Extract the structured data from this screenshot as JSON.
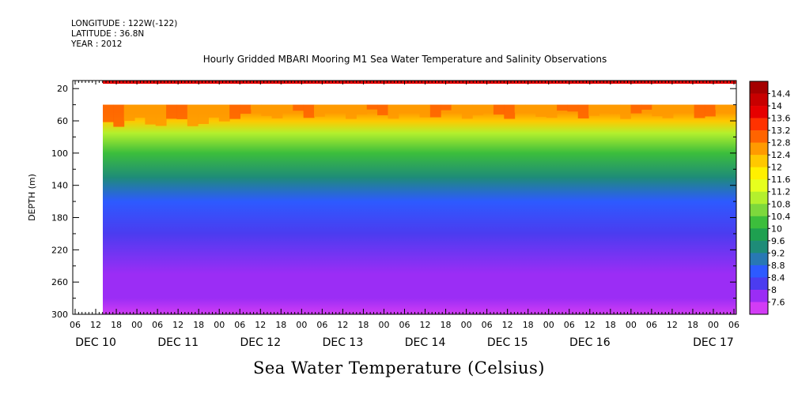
{
  "header": {
    "longitude": "LONGITUDE : 122W(-122)",
    "latitude": "LATITUDE : 36.8N",
    "year": "YEAR : 2012",
    "title": "Hourly Gridded MBARI Mooring M1 Sea Water Temperature and Salinity Observations"
  },
  "footer_title": "Sea Water Temperature (Celsius)",
  "chart_data": {
    "type": "heatmap",
    "title": "Hourly Gridded MBARI Mooring M1 Sea Water Temperature and Salinity Observations",
    "colorbar_title": "Sea Water Temperature (Celsius)",
    "ylabel": "DEPTH (m)",
    "ylim": [
      300,
      10
    ],
    "y_inverted": true,
    "y_tick_labels": [
      "20",
      "60",
      "100",
      "140",
      "180",
      "220",
      "260",
      "300"
    ],
    "x_range": [
      "DEC 09 06",
      "DEC 17 06"
    ],
    "x_hour_labels": [
      "06",
      "12",
      "18",
      "00",
      "06",
      "12",
      "18",
      "00",
      "06",
      "12",
      "18",
      "00",
      "06",
      "12",
      "18",
      "00",
      "06",
      "12",
      "18",
      "00",
      "06",
      "12",
      "18",
      "00",
      "06",
      "12",
      "18",
      "00",
      "06",
      "12",
      "18",
      "00",
      "06"
    ],
    "x_day_labels": [
      "DEC 10",
      "DEC 11",
      "DEC 12",
      "DEC 13",
      "DEC 14",
      "DEC 15",
      "DEC 16",
      "DEC 17"
    ],
    "data_start": "DEC 09 12",
    "colorbar_levels": [
      "14.4",
      "14",
      "13.6",
      "13.2",
      "12.8",
      "12.4",
      "12",
      "11.6",
      "11.2",
      "10.8",
      "10.4",
      "10",
      "9.6",
      "9.2",
      "8.8",
      "8.4",
      "8",
      "7.6"
    ],
    "colormap": [
      "#a50000",
      "#c80000",
      "#e60000",
      "#ff3200",
      "#ff6400",
      "#ff9a00",
      "#ffc800",
      "#fff000",
      "#e6ff1e",
      "#b4f02d",
      "#7dd83c",
      "#3cbe3c",
      "#1ea050",
      "#1e8c78",
      "#2878b4",
      "#2d5aff",
      "#4b3cf0",
      "#9b2df5",
      "#d23cf5"
    ],
    "depth_profile": [
      {
        "depth": 10,
        "temp": 14.3
      },
      {
        "depth": 50,
        "temp": 13.2
      },
      {
        "depth": 60,
        "temp": 12.4
      },
      {
        "depth": 75,
        "temp": 11.4
      },
      {
        "depth": 100,
        "temp": 10.6
      },
      {
        "depth": 130,
        "temp": 9.8
      },
      {
        "depth": 160,
        "temp": 9.2
      },
      {
        "depth": 200,
        "temp": 8.7
      },
      {
        "depth": 250,
        "temp": 8.3
      },
      {
        "depth": 280,
        "temp": 8.0
      },
      {
        "depth": 300,
        "temp": 7.8
      }
    ],
    "missing_depth_band": [
      14,
      40
    ],
    "grid": false,
    "legend": "colorbar-right"
  }
}
